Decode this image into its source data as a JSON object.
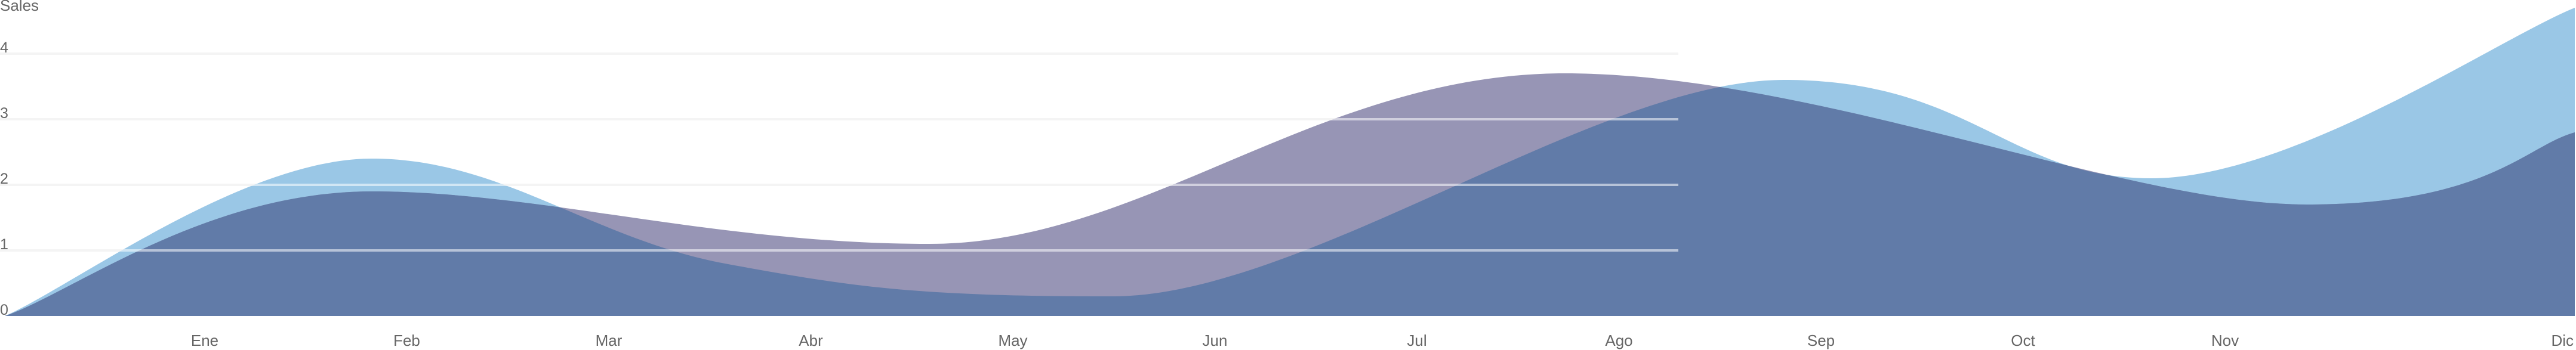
{
  "chart_data": {
    "type": "area",
    "ylabel": "Sales",
    "xlabel": "",
    "title": "",
    "categories": [
      "Ene",
      "Feb",
      "Mar",
      "Abr",
      "May",
      "Jun",
      "Jul",
      "Ago",
      "Sep",
      "Oct",
      "Nov",
      "Dic"
    ],
    "y_ticks": [
      "0",
      "1",
      "2",
      "3",
      "4"
    ],
    "ylim": [
      0,
      4.4
    ],
    "grid": "horizontal",
    "series": [
      {
        "color": "#9ac7e6",
        "points": [
          {
            "x": "2023-01-01",
            "y": 0.0
          },
          {
            "x": "2023-02-22",
            "y": 2.4
          },
          {
            "x": "2023-04-13",
            "y": 0.8
          },
          {
            "x": "2023-06-07",
            "y": 0.3
          },
          {
            "x": "2023-09-10",
            "y": 3.6
          },
          {
            "x": "2023-11-01",
            "y": 2.1
          },
          {
            "x": "2023-12-31",
            "y": 4.7
          }
        ]
      },
      {
        "color": "#9795b5",
        "points": [
          {
            "x": "2023-01-01",
            "y": 0.0
          },
          {
            "x": "2023-02-22",
            "y": 1.9
          },
          {
            "x": "2023-05-12",
            "y": 1.1
          },
          {
            "x": "2023-08-10",
            "y": 3.7
          },
          {
            "x": "2023-11-23",
            "y": 1.7
          },
          {
            "x": "2023-12-31",
            "y": 2.8
          }
        ]
      }
    ],
    "overlap_color": "#617ba8"
  }
}
